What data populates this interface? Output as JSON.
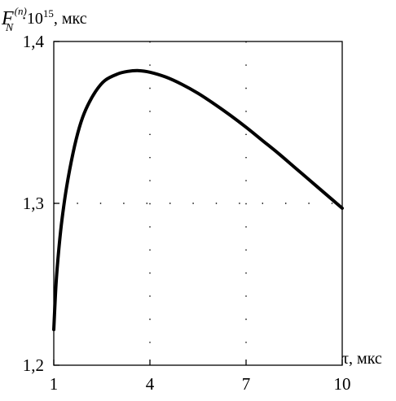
{
  "chart_data": {
    "type": "line",
    "ylabel": {
      "symbol": "F",
      "sup": "(n)",
      "sub": "N",
      "mult": "·10",
      "power": "15",
      "unit": ", мкс"
    },
    "xlabel": "τ, мкс",
    "xlim": [
      1,
      10
    ],
    "ylim": [
      1.2,
      1.4
    ],
    "xticks": [
      1,
      4,
      7,
      10
    ],
    "xtick_labels": [
      "1",
      "4",
      "7",
      "10"
    ],
    "yticks": [
      1.2,
      1.3,
      1.4
    ],
    "ytick_labels": [
      "1,2",
      "1,3",
      "1,4"
    ],
    "grid": "dotted",
    "series": [
      {
        "x": [
          1.0,
          1.07,
          1.15,
          1.25,
          1.4,
          1.6,
          1.8,
          2.0,
          2.3,
          2.6,
          3.0,
          3.3,
          3.65,
          4.0,
          4.5,
          5.0,
          5.5,
          6.0,
          6.5,
          7.0,
          7.5,
          8.0,
          8.5,
          9.0,
          9.5,
          10.0
        ],
        "y": [
          1.222,
          1.25,
          1.27,
          1.289,
          1.31,
          1.331,
          1.347,
          1.358,
          1.369,
          1.376,
          1.38,
          1.3815,
          1.382,
          1.381,
          1.378,
          1.3735,
          1.368,
          1.3615,
          1.3545,
          1.347,
          1.339,
          1.331,
          1.3225,
          1.314,
          1.3055,
          1.297
        ]
      }
    ]
  }
}
